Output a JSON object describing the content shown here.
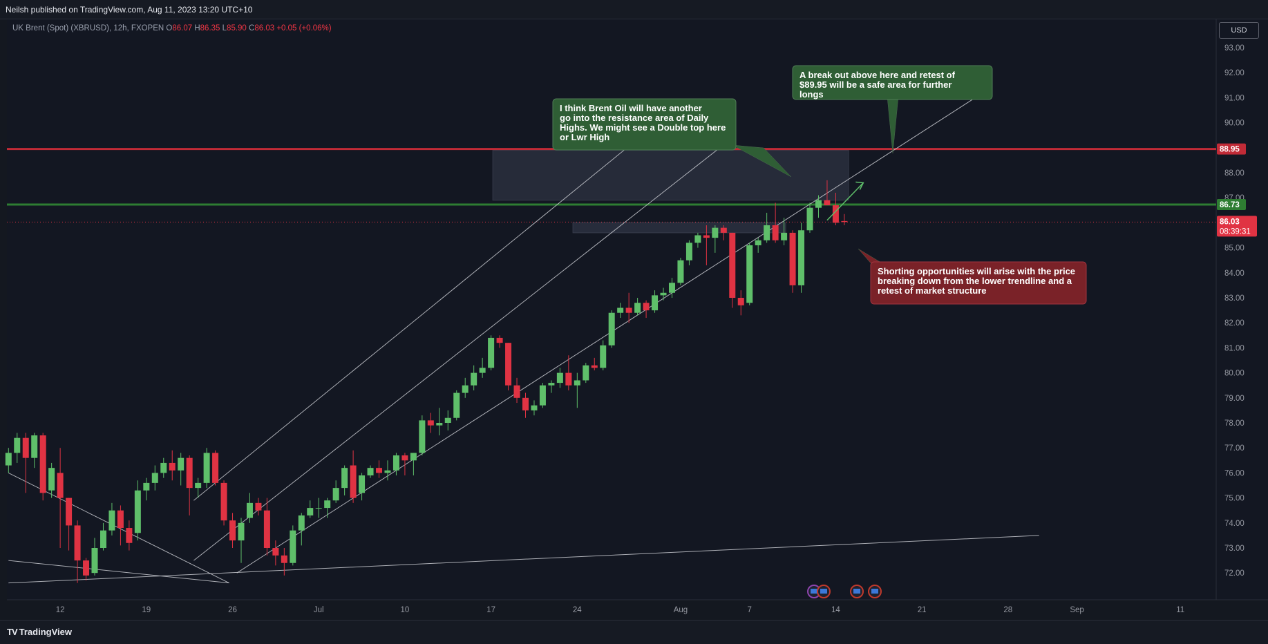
{
  "header": {
    "published": "Neilsh published on TradingView.com, Aug 11, 2023 13:20 UTC+10"
  },
  "symbol": {
    "name": "UK Brent (Spot) (XBRUSD), 12h, FXOPEN",
    "open_label": "O",
    "open": "86.07",
    "high_label": "H",
    "high": "86.35",
    "low_label": "L",
    "low": "85.90",
    "close_label": "C",
    "close": "86.03",
    "change": "+0.05 (+0.06%)"
  },
  "currency": "USD",
  "footer": {
    "brand": "TradingView"
  },
  "colors": {
    "up": "#5fbf6a",
    "down": "#e03343",
    "resistance": "#c12b37",
    "support": "#2e7d32",
    "annotation_green": "#2f5e35",
    "annotation_red": "#7a2228"
  },
  "chart_data": {
    "type": "candlestick",
    "interval": "12h",
    "y_axis": {
      "range": [
        71.3,
        93.7
      ],
      "ticks": [
        "93.00",
        "92.00",
        "91.00",
        "90.00",
        "89.00",
        "88.00",
        "87.00",
        "86.00",
        "85.00",
        "84.00",
        "83.00",
        "82.00",
        "81.00",
        "80.00",
        "79.00",
        "78.00",
        "77.00",
        "76.00",
        "75.00",
        "74.00",
        "73.00",
        "72.00"
      ]
    },
    "x_axis": {
      "ticks": [
        {
          "label": "12",
          "bar": 6
        },
        {
          "label": "19",
          "bar": 16
        },
        {
          "label": "26",
          "bar": 26
        },
        {
          "label": "Jul",
          "bar": 36
        },
        {
          "label": "10",
          "bar": 46
        },
        {
          "label": "17",
          "bar": 56
        },
        {
          "label": "24",
          "bar": 66
        },
        {
          "label": "Aug",
          "bar": 78
        },
        {
          "label": "7",
          "bar": 86
        },
        {
          "label": "14",
          "bar": 96
        },
        {
          "label": "21",
          "bar": 106
        },
        {
          "label": "28",
          "bar": 116
        },
        {
          "label": "Sep",
          "bar": 124
        },
        {
          "label": "11",
          "bar": 136
        }
      ]
    },
    "candles": [
      [
        76.3,
        77.0,
        76.0,
        76.8
      ],
      [
        76.8,
        77.6,
        76.4,
        77.4
      ],
      [
        77.4,
        77.6,
        75.2,
        76.6
      ],
      [
        76.6,
        77.6,
        76.2,
        77.5
      ],
      [
        77.5,
        77.6,
        74.9,
        75.2
      ],
      [
        75.3,
        76.4,
        75.0,
        76.2
      ],
      [
        76.0,
        77.0,
        73.0,
        75.0
      ],
      [
        75.0,
        75.0,
        72.9,
        73.9
      ],
      [
        73.9,
        74.1,
        71.6,
        72.5
      ],
      [
        72.5,
        72.6,
        71.7,
        71.9
      ],
      [
        72.0,
        73.4,
        71.9,
        73.0
      ],
      [
        73.0,
        74.0,
        72.9,
        73.7
      ],
      [
        73.7,
        74.8,
        73.5,
        74.5
      ],
      [
        74.5,
        74.7,
        73.1,
        73.8
      ],
      [
        73.8,
        74.1,
        72.9,
        73.2
      ],
      [
        73.6,
        75.7,
        73.3,
        75.3
      ],
      [
        75.3,
        75.8,
        74.9,
        75.6
      ],
      [
        75.6,
        76.3,
        75.3,
        76.0
      ],
      [
        76.0,
        76.6,
        75.8,
        76.4
      ],
      [
        76.4,
        76.9,
        75.7,
        76.1
      ],
      [
        76.1,
        76.8,
        75.5,
        76.6
      ],
      [
        76.6,
        76.7,
        74.3,
        75.4
      ],
      [
        75.4,
        75.8,
        75.0,
        75.6
      ],
      [
        75.6,
        77.0,
        75.4,
        76.8
      ],
      [
        76.8,
        76.9,
        75.5,
        75.6
      ],
      [
        75.6,
        75.7,
        73.9,
        74.1
      ],
      [
        74.1,
        74.4,
        73.0,
        73.3
      ],
      [
        73.3,
        74.2,
        72.4,
        74.0
      ],
      [
        74.2,
        75.2,
        74.0,
        74.8
      ],
      [
        74.8,
        75.0,
        74.3,
        74.5
      ],
      [
        74.5,
        75.0,
        72.7,
        73.0
      ],
      [
        73.0,
        73.3,
        72.3,
        72.7
      ],
      [
        72.7,
        73.0,
        71.9,
        72.4
      ],
      [
        72.4,
        73.9,
        72.3,
        73.7
      ],
      [
        73.7,
        74.4,
        73.1,
        74.3
      ],
      [
        74.3,
        74.9,
        74.2,
        74.6
      ],
      [
        74.6,
        75.0,
        74.2,
        74.6
      ],
      [
        74.6,
        75.0,
        74.2,
        74.9
      ],
      [
        74.9,
        75.7,
        74.8,
        75.4
      ],
      [
        75.4,
        76.3,
        75.1,
        76.2
      ],
      [
        76.3,
        76.9,
        74.8,
        75.0
      ],
      [
        75.2,
        76.0,
        74.9,
        75.9
      ],
      [
        75.9,
        76.3,
        75.8,
        76.2
      ],
      [
        76.2,
        76.5,
        75.8,
        76.0
      ],
      [
        76.0,
        76.5,
        75.7,
        76.1
      ],
      [
        76.1,
        76.8,
        75.9,
        76.7
      ],
      [
        76.7,
        76.8,
        75.9,
        76.5
      ],
      [
        76.5,
        76.8,
        75.9,
        76.8
      ],
      [
        76.8,
        78.3,
        76.7,
        78.1
      ],
      [
        78.1,
        78.4,
        77.6,
        77.9
      ],
      [
        77.9,
        78.6,
        77.5,
        78.0
      ],
      [
        78.0,
        78.5,
        77.7,
        78.2
      ],
      [
        78.2,
        79.3,
        78.1,
        79.2
      ],
      [
        79.2,
        79.8,
        79.0,
        79.5
      ],
      [
        79.5,
        80.3,
        79.3,
        80.0
      ],
      [
        80.0,
        80.6,
        79.8,
        80.2
      ],
      [
        80.2,
        81.5,
        80.1,
        81.4
      ],
      [
        81.4,
        81.5,
        81.0,
        81.2
      ],
      [
        81.2,
        81.2,
        79.3,
        79.5
      ],
      [
        79.5,
        79.8,
        78.8,
        79.0
      ],
      [
        79.0,
        79.2,
        78.2,
        78.5
      ],
      [
        78.5,
        78.9,
        78.3,
        78.7
      ],
      [
        78.7,
        79.6,
        78.6,
        79.5
      ],
      [
        79.5,
        79.7,
        79.2,
        79.6
      ],
      [
        79.6,
        80.2,
        79.4,
        80.0
      ],
      [
        80.0,
        80.7,
        79.3,
        79.5
      ],
      [
        79.5,
        80.0,
        78.6,
        79.7
      ],
      [
        79.7,
        80.4,
        79.6,
        80.3
      ],
      [
        80.3,
        80.6,
        80.1,
        80.2
      ],
      [
        80.2,
        81.3,
        80.1,
        81.1
      ],
      [
        81.1,
        82.5,
        81.0,
        82.4
      ],
      [
        82.4,
        82.8,
        82.2,
        82.6
      ],
      [
        82.6,
        83.2,
        82.0,
        82.4
      ],
      [
        82.4,
        83.0,
        82.3,
        82.8
      ],
      [
        82.8,
        82.9,
        82.2,
        82.5
      ],
      [
        82.5,
        83.3,
        82.4,
        83.1
      ],
      [
        83.1,
        83.4,
        82.9,
        83.2
      ],
      [
        83.2,
        83.8,
        83.0,
        83.6
      ],
      [
        83.6,
        84.6,
        83.5,
        84.5
      ],
      [
        84.5,
        85.3,
        84.3,
        85.2
      ],
      [
        85.2,
        85.6,
        85.0,
        85.5
      ],
      [
        85.5,
        85.9,
        84.3,
        85.4
      ],
      [
        85.4,
        85.9,
        84.8,
        85.8
      ],
      [
        85.8,
        85.9,
        85.3,
        85.6
      ],
      [
        85.6,
        85.6,
        82.6,
        83.0
      ],
      [
        83.0,
        83.3,
        82.3,
        82.7
      ],
      [
        82.8,
        85.2,
        82.7,
        85.1
      ],
      [
        85.1,
        85.4,
        84.8,
        85.3
      ],
      [
        85.3,
        86.4,
        85.2,
        85.9
      ],
      [
        85.9,
        86.8,
        85.2,
        85.3
      ],
      [
        85.3,
        86.2,
        85.1,
        85.6
      ],
      [
        85.6,
        85.7,
        83.2,
        83.5
      ],
      [
        83.5,
        86.0,
        83.2,
        85.7
      ],
      [
        85.7,
        86.8,
        85.6,
        86.6
      ],
      [
        86.6,
        87.1,
        86.2,
        86.9
      ],
      [
        86.9,
        87.7,
        86.7,
        86.7
      ],
      [
        86.7,
        87.2,
        85.9,
        86.0
      ],
      [
        86.07,
        86.35,
        85.9,
        86.03
      ]
    ],
    "horizontal_levels": [
      {
        "price": "88.95",
        "color": "#c12b37"
      },
      {
        "price": "86.73",
        "color": "#2e7d32"
      },
      {
        "price": "86.03",
        "color": "#e03343",
        "countdown": "08:39:31"
      }
    ],
    "annotations": [
      {
        "text": "I think Brent Oil will have another go into the resistance area of Daily Highs. We might see a Double top here or Lwr High",
        "color": "#2f5e35"
      },
      {
        "text": "A break out above here and retest of $89.95 will be a safe area for further longs",
        "color": "#2f5e35"
      },
      {
        "text": "Shorting opportunities will arise with the price breaking down from the lower trendline and a retest of market structure",
        "color": "#7a2228"
      }
    ]
  }
}
